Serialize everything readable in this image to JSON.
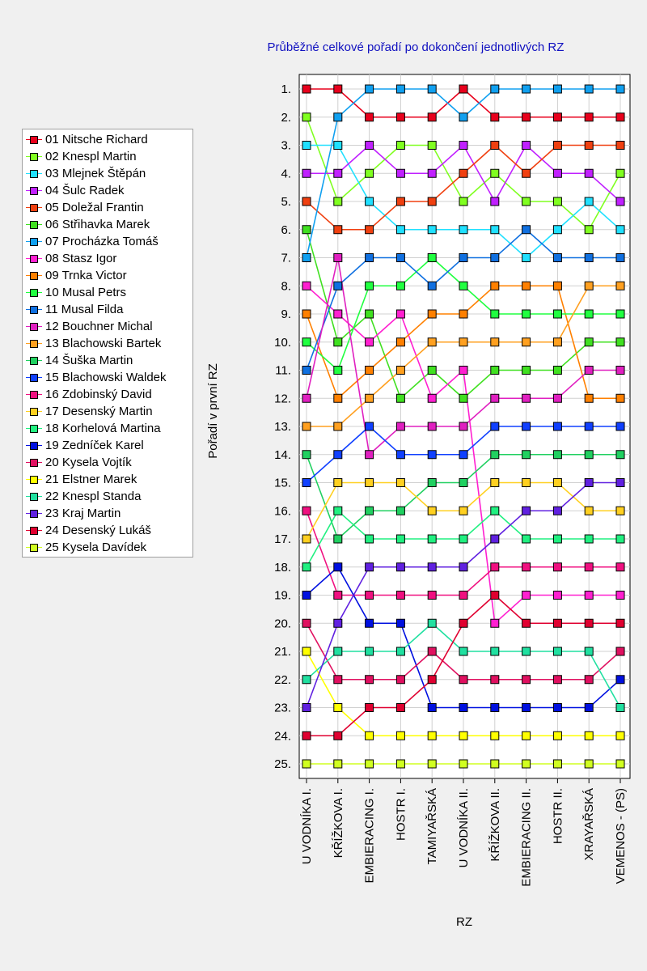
{
  "chart_data": {
    "type": "line",
    "title": "Průběžné celkové pořadí po dokončení jednotlivých RZ",
    "xlabel": "RZ",
    "ylabel": "Pořadí v první RZ",
    "y_axis_reversed": true,
    "ylim": [
      1,
      25
    ],
    "y_tick_labels": [
      "1.",
      "2.",
      "3.",
      "4.",
      "5.",
      "6.",
      "7.",
      "8.",
      "9.",
      "10.",
      "11.",
      "12.",
      "13.",
      "14.",
      "15.",
      "16.",
      "17.",
      "18.",
      "19.",
      "20.",
      "21.",
      "22.",
      "23.",
      "24.",
      "25."
    ],
    "categories": [
      "U VODNÍKA I.",
      "KŘÍŽKOVA I.",
      "EMBIERACING I.",
      "HOSTR I.",
      "TAMIYAŘSKÁ",
      "U VODNÍKA II.",
      "KŘÍŽKOVA II.",
      "EMBIERACING II.",
      "HOSTR II.",
      "XRAYAŘSKÁ",
      "VEMENOS - (PS)"
    ],
    "grid": true,
    "legend_position": "left",
    "series": [
      {
        "name": "01 Nitsche Richard",
        "color": "#e8001c",
        "values": [
          1,
          1,
          2,
          2,
          2,
          1,
          2,
          2,
          2,
          2,
          2
        ]
      },
      {
        "name": "02 Knespl Martin",
        "color": "#80ff20",
        "values": [
          2,
          5,
          4,
          3,
          3,
          5,
          4,
          5,
          5,
          6,
          4
        ]
      },
      {
        "name": "03 Mlejnek Štěpán",
        "color": "#20e0ff",
        "values": [
          3,
          3,
          5,
          6,
          6,
          6,
          6,
          7,
          6,
          5,
          6
        ]
      },
      {
        "name": "04 Šulc Radek",
        "color": "#c020ff",
        "values": [
          4,
          4,
          3,
          4,
          4,
          3,
          5,
          3,
          4,
          4,
          5
        ]
      },
      {
        "name": "05 Doležal Frantin",
        "color": "#f04010",
        "values": [
          5,
          6,
          6,
          5,
          5,
          4,
          3,
          4,
          3,
          3,
          3
        ]
      },
      {
        "name": "06 Střihavka Marek",
        "color": "#40e020",
        "values": [
          6,
          10,
          9,
          12,
          11,
          12,
          11,
          11,
          11,
          10,
          10
        ]
      },
      {
        "name": "07 Procházka Tomáš",
        "color": "#10a0f0",
        "values": [
          7,
          2,
          1,
          1,
          1,
          2,
          1,
          1,
          1,
          1,
          1
        ]
      },
      {
        "name": "08 Stasz Igor",
        "color": "#ff20d0",
        "values": [
          8,
          9,
          10,
          9,
          12,
          11,
          20,
          19,
          19,
          19,
          19
        ]
      },
      {
        "name": "09 Trnka Victor",
        "color": "#ff8000",
        "values": [
          9,
          12,
          11,
          10,
          9,
          9,
          8,
          8,
          8,
          12,
          12
        ]
      },
      {
        "name": "10 Musal Petrs",
        "color": "#20ff40",
        "values": [
          10,
          11,
          8,
          8,
          7,
          8,
          9,
          9,
          9,
          9,
          9
        ]
      },
      {
        "name": "11 Musal Filda",
        "color": "#1070e0",
        "values": [
          11,
          8,
          7,
          7,
          8,
          7,
          7,
          6,
          7,
          7,
          7
        ]
      },
      {
        "name": "12 Bouchner Michal",
        "color": "#e020c0",
        "values": [
          12,
          7,
          14,
          13,
          13,
          13,
          12,
          12,
          12,
          11,
          11
        ]
      },
      {
        "name": "13 Blachowski Bartek",
        "color": "#ffa020",
        "values": [
          13,
          13,
          12,
          11,
          10,
          10,
          10,
          10,
          10,
          8,
          8
        ]
      },
      {
        "name": "14 Šuška Martin",
        "color": "#20d060",
        "values": [
          14,
          17,
          16,
          16,
          15,
          15,
          14,
          14,
          14,
          14,
          14
        ]
      },
      {
        "name": "15 Blachowski Waldek",
        "color": "#1040ff",
        "values": [
          15,
          14,
          13,
          14,
          14,
          14,
          13,
          13,
          13,
          13,
          13
        ]
      },
      {
        "name": "16 Zdobinský David",
        "color": "#f01080",
        "values": [
          16,
          19,
          19,
          19,
          19,
          19,
          18,
          18,
          18,
          18,
          18
        ]
      },
      {
        "name": "17 Desenský Martin",
        "color": "#ffd020",
        "values": [
          17,
          15,
          15,
          15,
          16,
          16,
          15,
          15,
          15,
          16,
          16
        ]
      },
      {
        "name": "18 Korhelová Martina",
        "color": "#20f080",
        "values": [
          18,
          16,
          17,
          17,
          17,
          17,
          16,
          17,
          17,
          17,
          17
        ]
      },
      {
        "name": "19 Zedníček Karel",
        "color": "#0010e0",
        "values": [
          19,
          18,
          20,
          20,
          23,
          23,
          23,
          23,
          23,
          23,
          22
        ]
      },
      {
        "name": "20 Kysela Vojtík",
        "color": "#e01060",
        "values": [
          20,
          22,
          22,
          22,
          21,
          22,
          22,
          22,
          22,
          22,
          21
        ]
      },
      {
        "name": "21 Elstner Marek",
        "color": "#ffff00",
        "values": [
          21,
          23,
          24,
          24,
          24,
          24,
          24,
          24,
          24,
          24,
          24
        ]
      },
      {
        "name": "22 Knespl Standa",
        "color": "#20e0a0",
        "values": [
          22,
          21,
          21,
          21,
          20,
          21,
          21,
          21,
          21,
          21,
          23
        ]
      },
      {
        "name": "23 Kraj Martin",
        "color": "#6020e0",
        "values": [
          23,
          20,
          18,
          18,
          18,
          18,
          17,
          16,
          16,
          15,
          15
        ]
      },
      {
        "name": "24 Desenský Lukáš",
        "color": "#e00030",
        "values": [
          24,
          24,
          23,
          23,
          22,
          20,
          19,
          20,
          20,
          20,
          20
        ]
      },
      {
        "name": "25 Kysela Davídek",
        "color": "#d0ff20",
        "values": [
          25,
          25,
          25,
          25,
          25,
          25,
          25,
          25,
          25,
          25,
          25
        ]
      }
    ]
  }
}
